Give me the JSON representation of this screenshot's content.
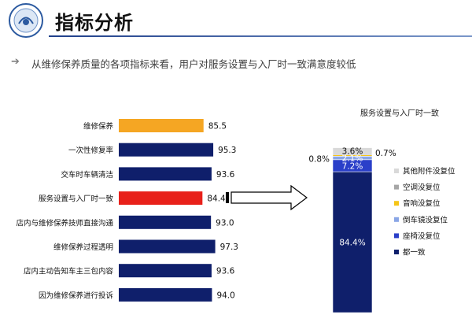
{
  "header": {
    "title": "指标分析",
    "subtitle": "从维修保养质量的各项指标来看，用户对服务设置与入厂时一致满意度较低",
    "subtitle_icon": "arrow-right-icon",
    "logo_icon": "company-seal-logo"
  },
  "colors": {
    "navy": "#0f1f6b",
    "orange": "#f5a623",
    "red": "#e8201a",
    "blue": "#2a3fc9",
    "lightblue": "#8aa6e6",
    "yellow": "#f5c518",
    "gray": "#a6a6a6",
    "lightgray": "#d9d9d9"
  },
  "chart_data": [
    {
      "type": "bar",
      "orientation": "horizontal",
      "title": "",
      "xlabel": "",
      "ylabel": "",
      "xlim": [
        0,
        100
      ],
      "grid": false,
      "categories": [
        "维修保养",
        "一次性修复率",
        "交车时车辆清洁",
        "服务设置与入厂时一致",
        "店内与维修保养技师直接沟通",
        "维修保养过程透明",
        "店内主动告知车主三包内容",
        "因为维修保养进行投诉"
      ],
      "values": [
        85.5,
        95.3,
        93.6,
        84.4,
        93.0,
        97.3,
        93.6,
        94.0
      ],
      "bar_colors": [
        "#f5a623",
        "#0f1f6b",
        "#0f1f6b",
        "#e8201a",
        "#0f1f6b",
        "#0f1f6b",
        "#0f1f6b",
        "#0f1f6b"
      ],
      "value_labels": [
        "85.5",
        "95.3",
        "93.6",
        "84.4",
        "93.0",
        "97.3",
        "93.6",
        "94.0"
      ]
    },
    {
      "type": "bar",
      "orientation": "vertical",
      "stacked": true,
      "title": "服务设置与入厂时一致",
      "ylim": [
        0,
        100
      ],
      "grid": false,
      "legend_position": "right",
      "series": [
        {
          "name": "都一致",
          "value": 84.4,
          "label": "84.4%",
          "color": "#0f1f6b"
        },
        {
          "name": "座椅没复位",
          "value": 7.2,
          "label": "7.2%",
          "color": "#2a3fc9"
        },
        {
          "name": "倒车镜没复位",
          "value": 2.1,
          "label": "2.1%",
          "color": "#8aa6e6"
        },
        {
          "name": "音响没复位",
          "value": 0.8,
          "label": "0.8%",
          "color": "#f5c518"
        },
        {
          "name": "空调没复位",
          "value": 0.7,
          "label": "0.7%",
          "color": "#a6a6a6"
        },
        {
          "name": "其他附件没复位",
          "value": 3.6,
          "label": "3.6%",
          "color": "#d9d9d9"
        }
      ]
    }
  ]
}
